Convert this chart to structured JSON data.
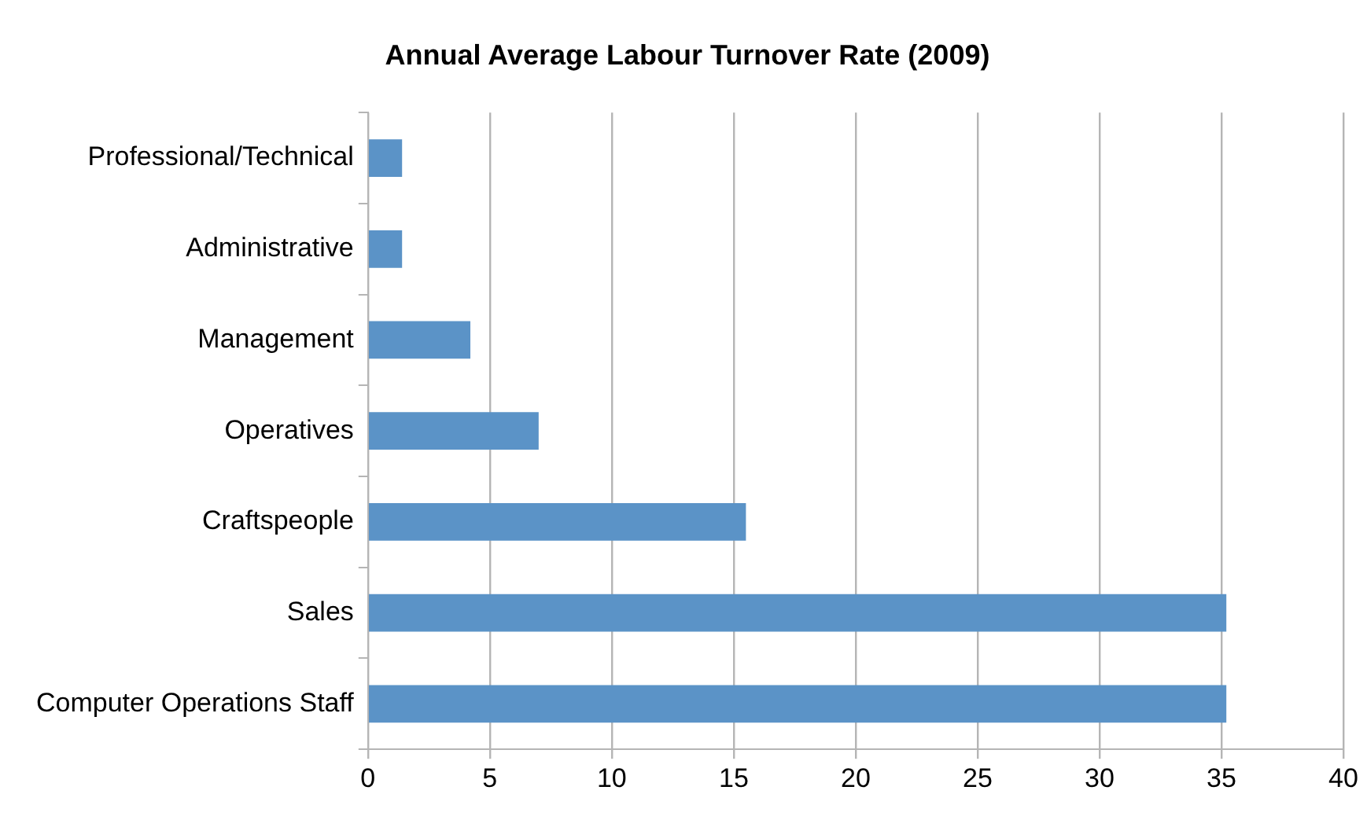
{
  "chart_data": {
    "type": "bar",
    "orientation": "horizontal",
    "title": "Annual Average Labour Turnover Rate (2009)",
    "categories": [
      "Professional/Technical",
      "Administrative",
      "Management",
      "Operatives",
      "Craftspeople",
      "Sales",
      "Computer Operations Staff"
    ],
    "values": [
      1.4,
      1.4,
      4.2,
      7.0,
      15.5,
      35.2,
      35.2
    ],
    "color": "#5b93c7",
    "xlim": [
      0,
      40
    ],
    "xticks": [
      0,
      5,
      10,
      15,
      20,
      25,
      30,
      35,
      40
    ],
    "grid": "x",
    "legend": false
  }
}
